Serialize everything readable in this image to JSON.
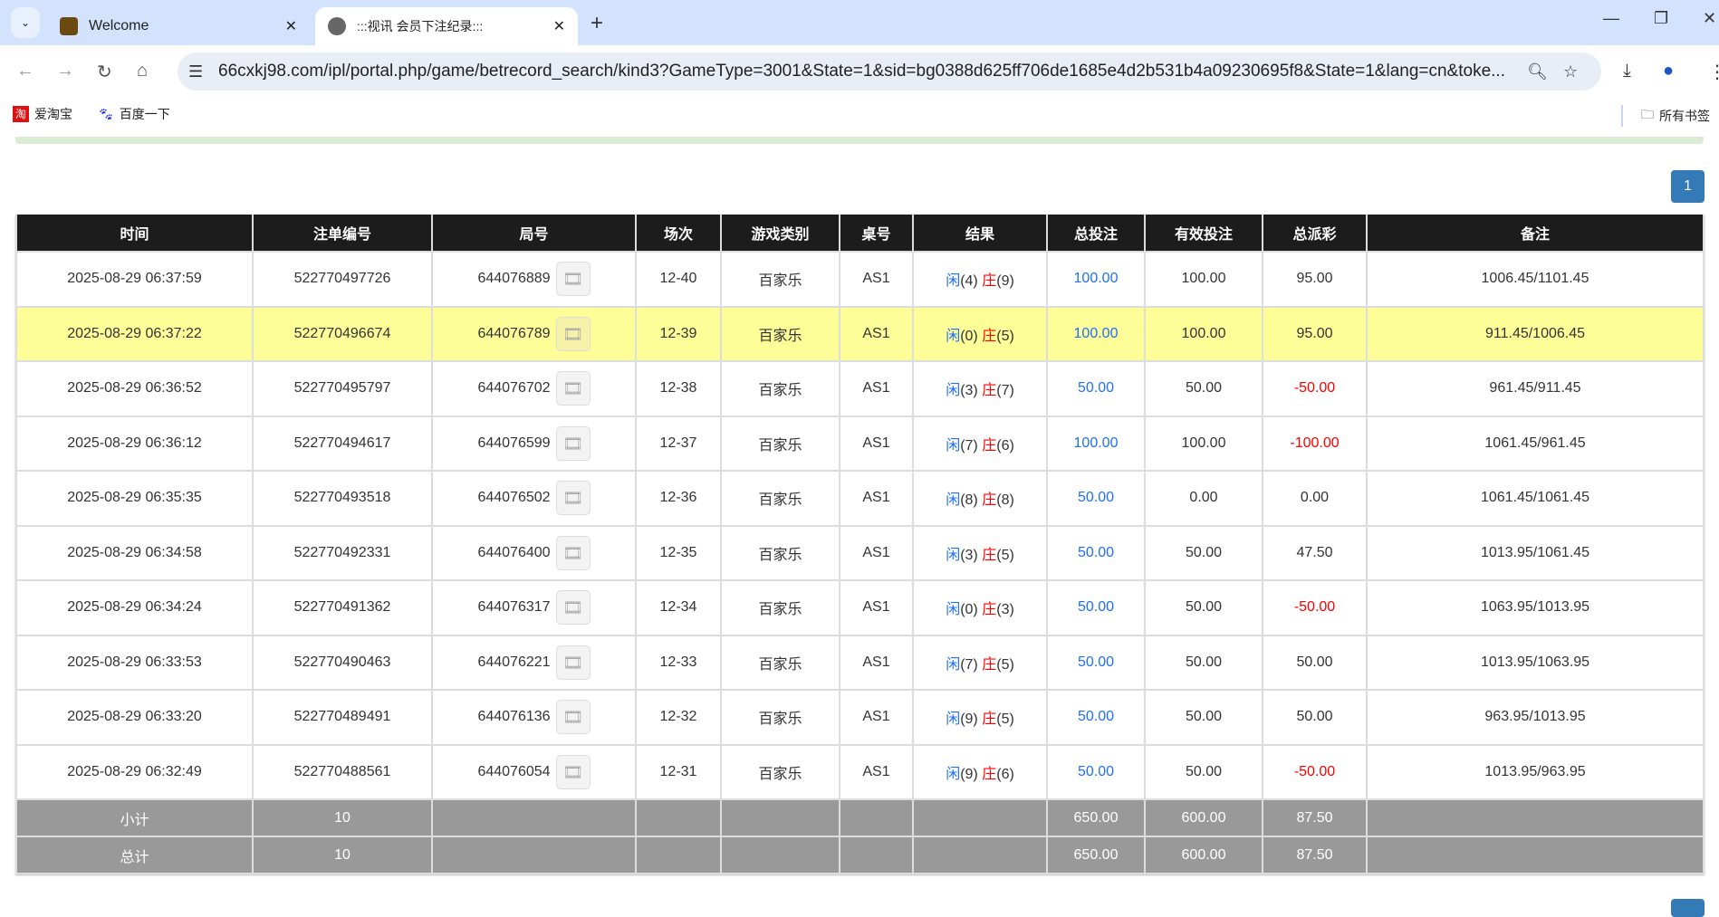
{
  "browser": {
    "tabs": [
      {
        "title": "Welcome",
        "active": false
      },
      {
        "title": ":::视讯 会员下注纪录:::",
        "active": true
      }
    ],
    "url": "66cxkj98.com/ipl/portal.php/game/betrecord_search/kind3?GameType=3001&State=1&sid=bg0388d625ff706de1685e4d2b531b4a09230695f8&State=1&lang=cn&toke...",
    "bookmarks": [
      "爱淘宝",
      "百度一下"
    ],
    "all_bookmarks": "所有书签"
  },
  "pagination": {
    "current": "1"
  },
  "table": {
    "headers": [
      "时间",
      "注单编号",
      "局号",
      "场次",
      "游戏类别",
      "桌号",
      "结果",
      "总投注",
      "有效投注",
      "总派彩",
      "备注"
    ],
    "player_label": "闲",
    "banker_label": "庄",
    "rows": [
      {
        "time": "2025-08-29 06:37:59",
        "bet_id": "522770497726",
        "round": "644076889",
        "session": "12-40",
        "game": "百家乐",
        "table": "AS1",
        "player": "(4)",
        "banker": "(9)",
        "total": "100.00",
        "valid": "100.00",
        "payout": "95.00",
        "payout_neg": false,
        "note": "1006.45/1101.45"
      },
      {
        "time": "2025-08-29 06:37:22",
        "bet_id": "522770496674",
        "round": "644076789",
        "session": "12-39",
        "game": "百家乐",
        "table": "AS1",
        "player": "(0)",
        "banker": "(5)",
        "total": "100.00",
        "valid": "100.00",
        "payout": "95.00",
        "payout_neg": false,
        "note": "911.45/1006.45",
        "highlight": true
      },
      {
        "time": "2025-08-29 06:36:52",
        "bet_id": "522770495797",
        "round": "644076702",
        "session": "12-38",
        "game": "百家乐",
        "table": "AS1",
        "player": "(3)",
        "banker": "(7)",
        "total": "50.00",
        "valid": "50.00",
        "payout": "-50.00",
        "payout_neg": true,
        "note": "961.45/911.45"
      },
      {
        "time": "2025-08-29 06:36:12",
        "bet_id": "522770494617",
        "round": "644076599",
        "session": "12-37",
        "game": "百家乐",
        "table": "AS1",
        "player": "(7)",
        "banker": "(6)",
        "total": "100.00",
        "valid": "100.00",
        "payout": "-100.00",
        "payout_neg": true,
        "note": "1061.45/961.45"
      },
      {
        "time": "2025-08-29 06:35:35",
        "bet_id": "522770493518",
        "round": "644076502",
        "session": "12-36",
        "game": "百家乐",
        "table": "AS1",
        "player": "(8)",
        "banker": "(8)",
        "total": "50.00",
        "valid": "0.00",
        "payout": "0.00",
        "payout_neg": false,
        "note": "1061.45/1061.45"
      },
      {
        "time": "2025-08-29 06:34:58",
        "bet_id": "522770492331",
        "round": "644076400",
        "session": "12-35",
        "game": "百家乐",
        "table": "AS1",
        "player": "(3)",
        "banker": "(5)",
        "total": "50.00",
        "valid": "50.00",
        "payout": "47.50",
        "payout_neg": false,
        "note": "1013.95/1061.45"
      },
      {
        "time": "2025-08-29 06:34:24",
        "bet_id": "522770491362",
        "round": "644076317",
        "session": "12-34",
        "game": "百家乐",
        "table": "AS1",
        "player": "(0)",
        "banker": "(3)",
        "total": "50.00",
        "valid": "50.00",
        "payout": "-50.00",
        "payout_neg": true,
        "note": "1063.95/1013.95"
      },
      {
        "time": "2025-08-29 06:33:53",
        "bet_id": "522770490463",
        "round": "644076221",
        "session": "12-33",
        "game": "百家乐",
        "table": "AS1",
        "player": "(7)",
        "banker": "(5)",
        "total": "50.00",
        "valid": "50.00",
        "payout": "50.00",
        "payout_neg": false,
        "note": "1013.95/1063.95"
      },
      {
        "time": "2025-08-29 06:33:20",
        "bet_id": "522770489491",
        "round": "644076136",
        "session": "12-32",
        "game": "百家乐",
        "table": "AS1",
        "player": "(9)",
        "banker": "(5)",
        "total": "50.00",
        "valid": "50.00",
        "payout": "50.00",
        "payout_neg": false,
        "note": "963.95/1013.95"
      },
      {
        "time": "2025-08-29 06:32:49",
        "bet_id": "522770488561",
        "round": "644076054",
        "session": "12-31",
        "game": "百家乐",
        "table": "AS1",
        "player": "(9)",
        "banker": "(6)",
        "total": "50.00",
        "valid": "50.00",
        "payout": "-50.00",
        "payout_neg": true,
        "note": "1013.95/963.95"
      }
    ],
    "subtotal": {
      "label": "小计",
      "count": "10",
      "total": "650.00",
      "valid": "600.00",
      "payout": "87.50"
    },
    "grandtotal": {
      "label": "总计",
      "count": "10",
      "total": "650.00",
      "valid": "600.00",
      "payout": "87.50"
    }
  },
  "colors": {
    "header_bg": "#1c1c1c",
    "highlight_row": "#fefe99",
    "summary_bg": "#999999",
    "player": "#1e6fff",
    "banker": "#ff0000",
    "pager": "#337ab7"
  }
}
